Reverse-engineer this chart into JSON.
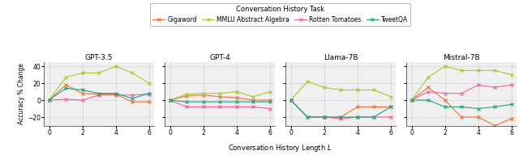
{
  "x": [
    0,
    1,
    2,
    3,
    4,
    5,
    6
  ],
  "subplots": [
    {
      "title": "GPT-3.5",
      "gigaword": [
        0,
        18,
        8,
        7,
        7,
        -2,
        -2
      ],
      "mmlu_algebra": [
        0,
        27,
        32,
        32,
        40,
        32,
        20
      ],
      "rotten_tomatoes": [
        0,
        1,
        0,
        6,
        6,
        6,
        7
      ],
      "tweetqa": [
        0,
        14,
        12,
        8,
        8,
        2,
        8
      ]
    },
    {
      "title": "GPT-4",
      "gigaword": [
        0,
        5,
        6,
        4,
        3,
        0,
        0
      ],
      "mmlu_algebra": [
        0,
        7,
        8,
        8,
        10,
        4,
        10
      ],
      "rotten_tomatoes": [
        0,
        -8,
        -8,
        -8,
        -8,
        -8,
        -10
      ],
      "tweetqa": [
        0,
        -2,
        -2,
        -2,
        -2,
        -2,
        -2
      ]
    },
    {
      "title": "Llama-7B",
      "gigaword": [
        0,
        -20,
        -20,
        -20,
        -8,
        -8,
        -8
      ],
      "mmlu_algebra": [
        0,
        22,
        15,
        12,
        12,
        12,
        4
      ],
      "rotten_tomatoes": [
        0,
        -20,
        -20,
        -22,
        -20,
        -20,
        -20
      ],
      "tweetqa": [
        0,
        -20,
        -20,
        -20,
        -20,
        -20,
        -8
      ]
    },
    {
      "title": "Mistral-7B",
      "gigaword": [
        0,
        15,
        0,
        -20,
        -20,
        -30,
        -22
      ],
      "mmlu_algebra": [
        0,
        27,
        40,
        35,
        35,
        35,
        30
      ],
      "rotten_tomatoes": [
        0,
        10,
        8,
        8,
        18,
        15,
        18
      ],
      "tweetqa": [
        0,
        0,
        -8,
        -8,
        -10,
        -8,
        -5
      ]
    }
  ],
  "colors": {
    "gigaword": "#E8733A",
    "mmlu_algebra": "#A8C830",
    "rotten_tomatoes": "#F060A0",
    "tweetqa": "#20A080"
  },
  "legend_title": "Conversation History Task",
  "legend_labels": [
    "Gigaword",
    "MMLU Abstract Algebra",
    "Rotten Tomatoes",
    "TweetQA"
  ],
  "ylabel": "Accuracy % Change",
  "xlabel": "Conversation History Length $L$",
  "ylim": [
    -30,
    45
  ],
  "yticks": [
    -20,
    0,
    20,
    40
  ],
  "xticks": [
    0,
    2,
    4,
    6
  ],
  "figsize": [
    6.4,
    1.92
  ],
  "dpi": 100,
  "bg_color": "#f0f0f0"
}
